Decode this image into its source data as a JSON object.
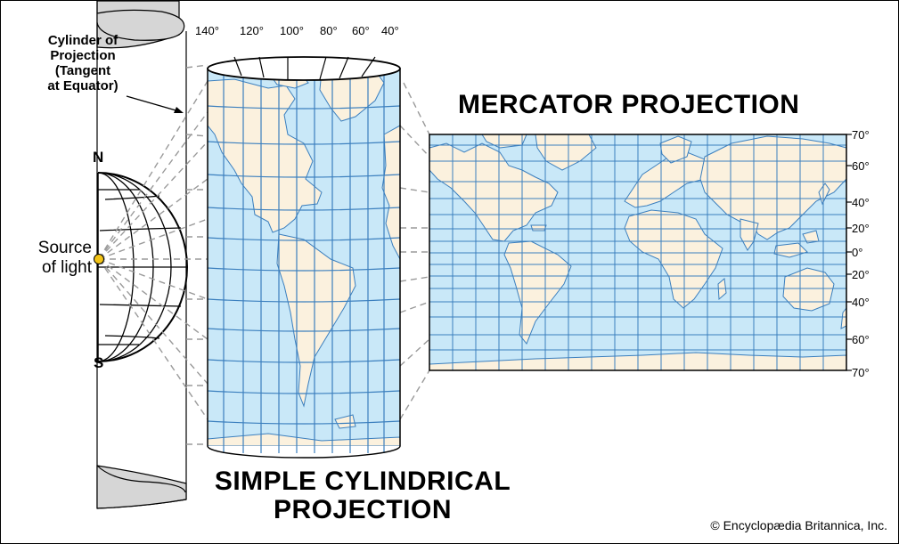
{
  "colors": {
    "ocean": "#c9e8f8",
    "land": "#fbf1de",
    "grid": "#3b7fbe",
    "coast": "#3b7fbe",
    "dash": "#9a9a9a",
    "cylinder_cap": "#d6d6d6",
    "light_source": "#f3c417"
  },
  "labels": {
    "cylinder_line1": "Cylinder of",
    "cylinder_line2": "Projection",
    "cylinder_line3": "(Tangent",
    "cylinder_line4": "at Equator)",
    "north": "N",
    "south": "S",
    "source_line1": "Source",
    "source_line2": "of light",
    "mercator_title": "MERCATOR PROJECTION",
    "simple_line1": "SIMPLE CYLINDRICAL",
    "simple_line2": "PROJECTION",
    "copyright": "© Encyclopædia Britannica, Inc."
  },
  "longitude_labels": [
    "140°",
    "120°",
    "100°",
    "80°",
    "60°",
    "40°"
  ],
  "latitude_labels": [
    "70°",
    "60°",
    "40°",
    "20°",
    "0°",
    "20°",
    "40°",
    "60°",
    "70°"
  ],
  "icons": [
    "light-source-icon",
    "globe-icon",
    "cylinder-icon",
    "pointer-arrow-icon"
  ]
}
